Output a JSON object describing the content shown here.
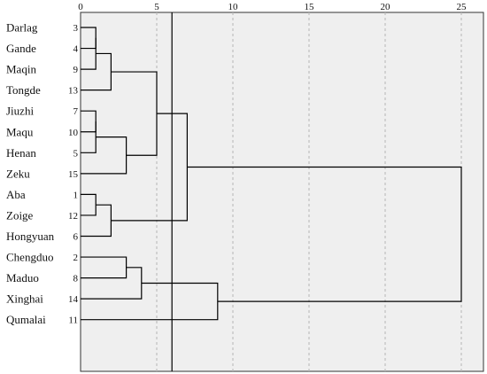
{
  "chart_data": {
    "type": "dendrogram",
    "orientation": "horizontal",
    "xlim": [
      0,
      26
    ],
    "xticks": [
      0,
      5,
      10,
      15,
      20,
      25
    ],
    "grid": true,
    "cut_line": 6,
    "leaves": [
      {
        "label": "Darlag",
        "num": "3"
      },
      {
        "label": "Gande",
        "num": "4"
      },
      {
        "label": "Maqin",
        "num": "9"
      },
      {
        "label": "Tongde",
        "num": "13"
      },
      {
        "label": "Jiuzhi",
        "num": "7"
      },
      {
        "label": "Maqu",
        "num": "10"
      },
      {
        "label": "Henan",
        "num": "5"
      },
      {
        "label": "Zeku",
        "num": "15"
      },
      {
        "label": "Aba",
        "num": "1"
      },
      {
        "label": "Zoige",
        "num": "12"
      },
      {
        "label": "Hongyuan",
        "num": "6"
      },
      {
        "label": "Chengduo",
        "num": "2"
      },
      {
        "label": "Maduo",
        "num": "8"
      },
      {
        "label": "Xinghai",
        "num": "14"
      },
      {
        "label": "Qumalai",
        "num": "11"
      }
    ],
    "merges": [
      {
        "a": "L0",
        "b": "L1",
        "height": 1
      },
      {
        "a": "M0",
        "b": "L2",
        "height": 1
      },
      {
        "a": "M1",
        "b": "L3",
        "height": 2
      },
      {
        "a": "L4",
        "b": "L5",
        "height": 1
      },
      {
        "a": "M3",
        "b": "L6",
        "height": 1
      },
      {
        "a": "M4",
        "b": "L7",
        "height": 3
      },
      {
        "a": "M2",
        "b": "M5",
        "height": 5
      },
      {
        "a": "L8",
        "b": "L9",
        "height": 1
      },
      {
        "a": "M7",
        "b": "L10",
        "height": 2
      },
      {
        "a": "M6",
        "b": "M8",
        "height": 7
      },
      {
        "a": "L11",
        "b": "L12",
        "height": 3
      },
      {
        "a": "M10",
        "b": "L13",
        "height": 4
      },
      {
        "a": "M11",
        "b": "L14",
        "height": 9
      },
      {
        "a": "M9",
        "b": "M12",
        "height": 25
      }
    ]
  }
}
